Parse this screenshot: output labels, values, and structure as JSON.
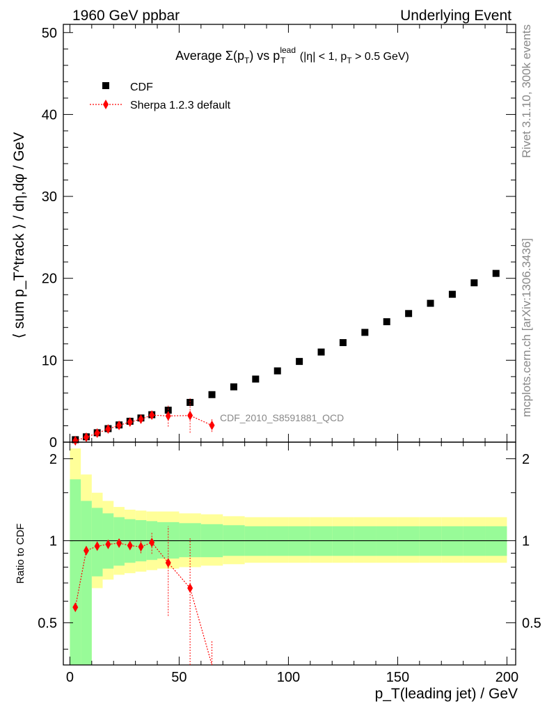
{
  "header": {
    "left": "1960 GeV ppbar",
    "right": "Underlying Event"
  },
  "plot_title": {
    "prefix": "Average ",
    "sigma": "Σ(p",
    "sub_T1": "T",
    "mid": ") vs p",
    "sup_lead": "lead",
    "sub_T2": "T",
    "cond": " (|η| < 1, p",
    "sub_T3": "T",
    "tail": " > 0.5 GeV)"
  },
  "side_text": {
    "rivet": "Rivet 3.1.10,  300k events",
    "mcplots": "mcplots.cern.ch [arXiv:1306.3436]"
  },
  "analysis_label": "CDF_2010_S8591881_QCD",
  "legend": {
    "data_label": "CDF",
    "mc_label": "Sherpa 1.2.3 default"
  },
  "axes": {
    "ylabel_main": "⟨ sum p_T^track ⟩ / dη,dφ / GeV",
    "ylabel_ratio": "Ratio to CDF",
    "xlabel": "p_T(leading jet) / GeV",
    "main_yticks": [
      "0",
      "10",
      "20",
      "30",
      "40",
      "50"
    ],
    "ratio_yticks": [
      "0.5",
      "1",
      "2"
    ],
    "xticks": [
      "0",
      "50",
      "100",
      "150",
      "200"
    ]
  },
  "colors": {
    "data": "#000000",
    "mc": "#ff0000",
    "band_inner": "#98fb98",
    "band_outer": "#ffff99"
  },
  "chart_data": [
    {
      "type": "scatter",
      "title": "Average Σ(p_T) vs p_T^lead (|η| < 1, p_T > 0.5 GeV)",
      "xlabel": "p_T(leading jet) / GeV",
      "ylabel": "⟨ sum p_T^track ⟩ / dη,dφ / GeV",
      "xlim": [
        -3,
        204
      ],
      "ylim": [
        0,
        51
      ],
      "series": [
        {
          "name": "CDF",
          "x": [
            2.5,
            7.5,
            12.5,
            17.5,
            22.5,
            27.5,
            32.5,
            37.5,
            45,
            55,
            65,
            75,
            85,
            95,
            105,
            115,
            125,
            135,
            145,
            155,
            165,
            175,
            185,
            195
          ],
          "y": [
            0.3,
            0.65,
            1.15,
            1.65,
            2.1,
            2.55,
            2.95,
            3.35,
            3.9,
            4.85,
            5.8,
            6.75,
            7.7,
            8.7,
            9.85,
            11.0,
            12.15,
            13.4,
            14.7,
            15.7,
            16.95,
            18.05,
            19.45,
            20.6
          ]
        },
        {
          "name": "Sherpa 1.2.3 default",
          "x": [
            2.5,
            7.5,
            12.5,
            17.5,
            22.5,
            27.5,
            32.5,
            37.5,
            45,
            55,
            65
          ],
          "y": [
            0.17,
            0.6,
            1.1,
            1.6,
            2.05,
            2.45,
            2.8,
            3.3,
            3.2,
            3.25,
            2.05
          ],
          "yerr": [
            0.05,
            0.08,
            0.1,
            0.12,
            0.15,
            0.2,
            0.3,
            0.4,
            1.3,
            2.1,
            0.8
          ]
        }
      ]
    },
    {
      "type": "scatter",
      "title": "",
      "xlabel": "p_T(leading jet) / GeV",
      "ylabel": "Ratio to CDF",
      "xlim": [
        -3,
        204
      ],
      "ylim": [
        0.35,
        2.3
      ],
      "yscale": "log",
      "reference_line": 1,
      "bands": {
        "x_edges": [
          0,
          5,
          10,
          15,
          20,
          25,
          30,
          35,
          40,
          50,
          60,
          70,
          80,
          90,
          100,
          110,
          120,
          130,
          140,
          150,
          160,
          170,
          180,
          190,
          200
        ],
        "inner_hi": [
          1.68,
          1.4,
          1.32,
          1.26,
          1.22,
          1.2,
          1.19,
          1.18,
          1.17,
          1.16,
          1.15,
          1.14,
          1.13,
          1.13,
          1.13,
          1.13,
          1.13,
          1.13,
          1.13,
          1.13,
          1.13,
          1.13,
          1.13,
          1.13
        ],
        "inner_lo": [
          0.3,
          0.3,
          0.74,
          0.79,
          0.81,
          0.83,
          0.84,
          0.85,
          0.86,
          0.87,
          0.87,
          0.88,
          0.88,
          0.88,
          0.88,
          0.88,
          0.88,
          0.88,
          0.88,
          0.88,
          0.88,
          0.88,
          0.88,
          0.88
        ],
        "outer_hi": [
          2.18,
          1.75,
          1.5,
          1.4,
          1.33,
          1.3,
          1.29,
          1.28,
          1.28,
          1.26,
          1.25,
          1.23,
          1.22,
          1.22,
          1.22,
          1.22,
          1.22,
          1.22,
          1.22,
          1.22,
          1.22,
          1.22,
          1.22,
          1.22
        ],
        "outer_lo": [
          0.3,
          0.3,
          0.67,
          0.72,
          0.75,
          0.76,
          0.77,
          0.78,
          0.79,
          0.8,
          0.81,
          0.82,
          0.83,
          0.83,
          0.83,
          0.83,
          0.83,
          0.83,
          0.83,
          0.83,
          0.83,
          0.83,
          0.83,
          0.83
        ]
      },
      "series": [
        {
          "name": "Sherpa 1.2.3 default",
          "x": [
            2.5,
            7.5,
            12.5,
            17.5,
            22.5,
            27.5,
            32.5,
            37.5,
            45,
            55,
            65
          ],
          "y": [
            0.57,
            0.92,
            0.955,
            0.97,
            0.98,
            0.96,
            0.95,
            0.985,
            0.83,
            0.67,
            0.33
          ],
          "yerr": [
            0.02,
            0.02,
            0.015,
            0.015,
            0.015,
            0.02,
            0.05,
            0.09,
            0.3,
            0.35,
            0.1
          ]
        }
      ]
    }
  ]
}
